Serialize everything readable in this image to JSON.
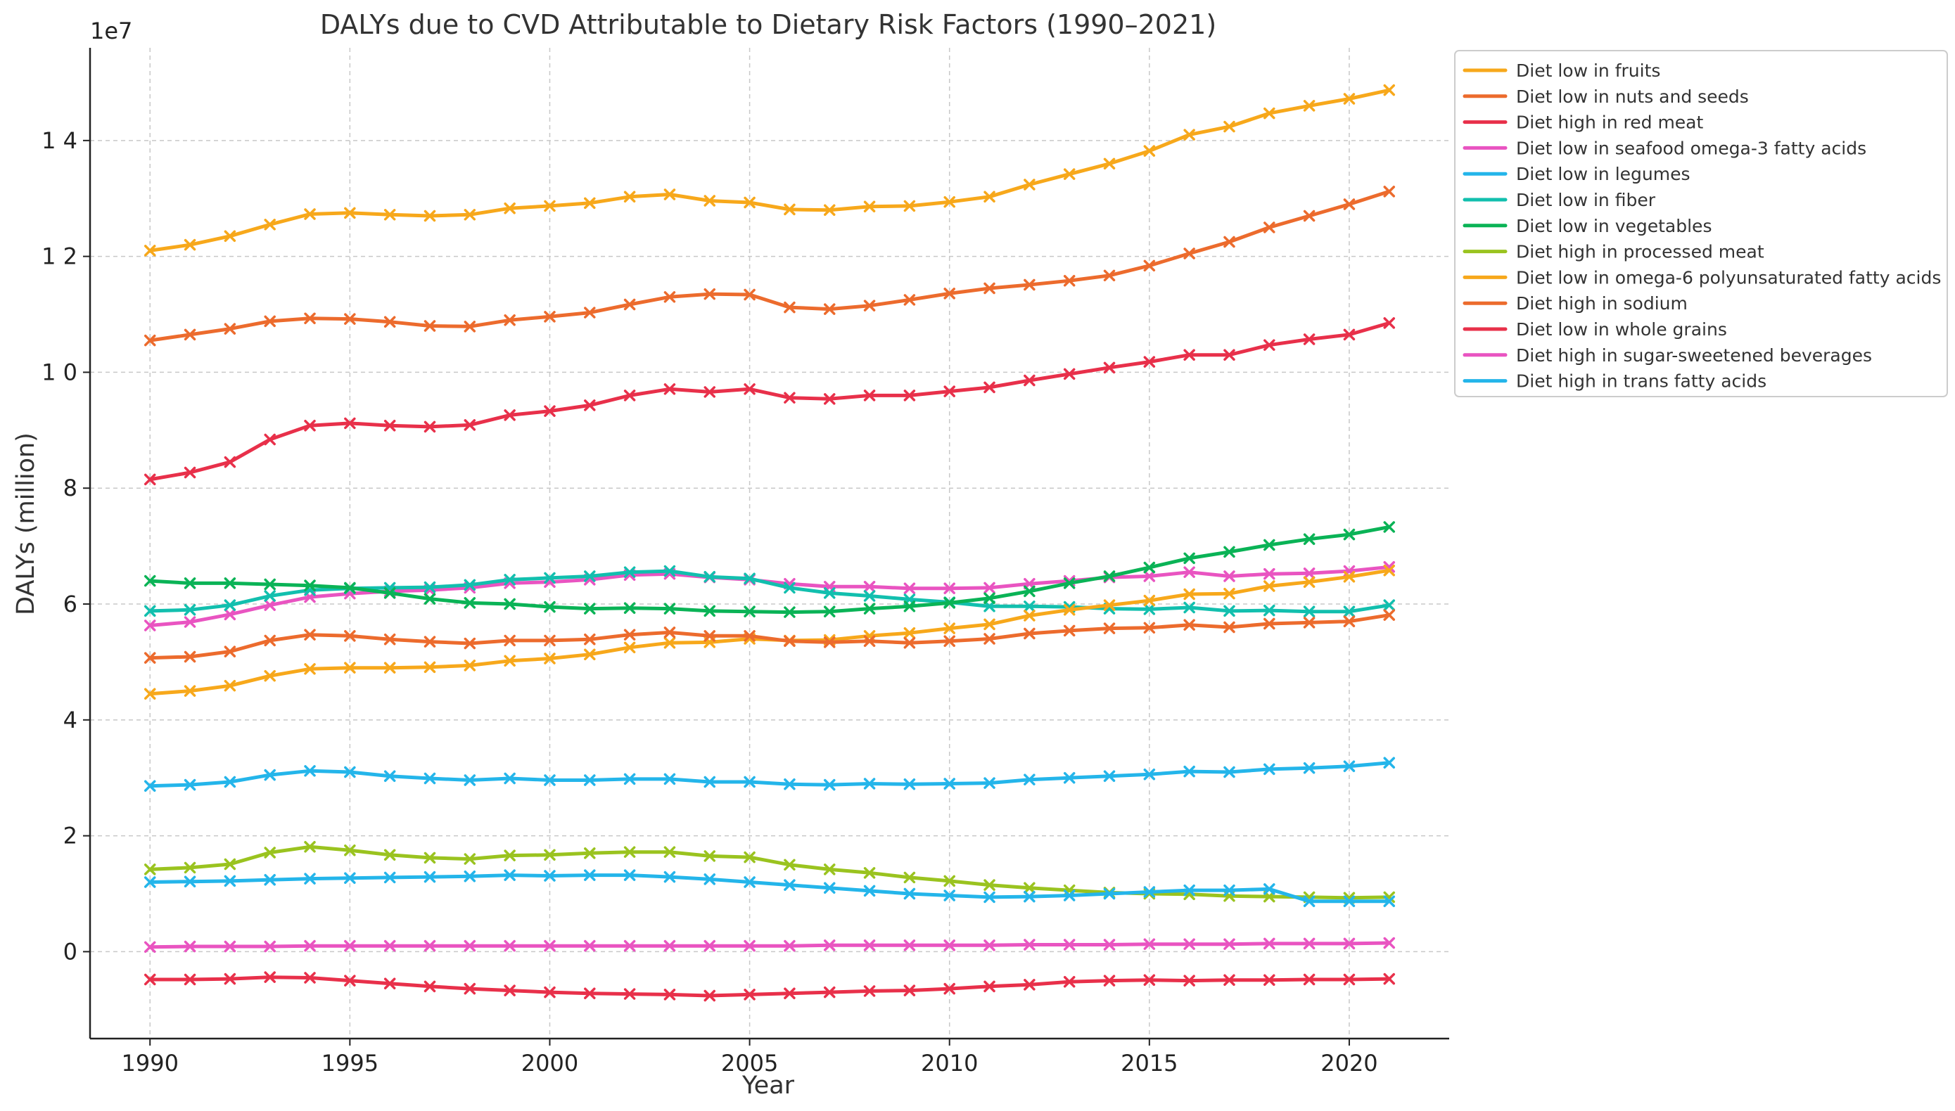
{
  "chart_data": {
    "type": "line",
    "title": "DALYs due to CVD Attributable to Dietary Risk Factors (1990–2021)",
    "xlabel": "Year",
    "ylabel": "DALYs (million)",
    "y_offset_label": "1e7",
    "xlim": [
      1988.5,
      2022.5
    ],
    "ylim": [
      -1.5,
      15.6
    ],
    "x_ticks": [
      1990,
      1995,
      2000,
      2005,
      2010,
      2015,
      2020
    ],
    "x_tick_labels": [
      "1990",
      "1995",
      "2000",
      "2005",
      "2010",
      "2015",
      "2020"
    ],
    "y_ticks": [
      0,
      2,
      4,
      6,
      8,
      10,
      12,
      14
    ],
    "y_tick_labels": [
      "0",
      "2",
      "4",
      "6",
      "8",
      "1 0",
      "1 2",
      "1 4"
    ],
    "grid": true,
    "legend_position": "top-right outside",
    "x": [
      1990,
      1991,
      1992,
      1993,
      1994,
      1995,
      1996,
      1997,
      1998,
      1999,
      2000,
      2001,
      2002,
      2003,
      2004,
      2005,
      2006,
      2007,
      2008,
      2009,
      2010,
      2011,
      2012,
      2013,
      2014,
      2015,
      2016,
      2017,
      2018,
      2019,
      2020,
      2021
    ],
    "series": [
      {
        "name": "Diet low in fruits",
        "color": "#f7a81b",
        "values": [
          12.1,
          12.2,
          12.35,
          12.55,
          12.73,
          12.75,
          12.72,
          12.7,
          12.72,
          12.83,
          12.87,
          12.92,
          13.03,
          13.07,
          12.96,
          12.93,
          12.81,
          12.8,
          12.86,
          12.87,
          12.94,
          13.03,
          13.24,
          13.42,
          13.6,
          13.82,
          14.1,
          14.24,
          14.47,
          14.6,
          14.72,
          14.87
        ]
      },
      {
        "name": "Diet low in nuts and seeds",
        "color": "#ec6b2d",
        "values": [
          10.55,
          10.65,
          10.75,
          10.88,
          10.93,
          10.92,
          10.87,
          10.8,
          10.79,
          10.9,
          10.96,
          11.03,
          11.17,
          11.3,
          11.35,
          11.34,
          11.12,
          11.09,
          11.15,
          11.25,
          11.36,
          11.45,
          11.51,
          11.58,
          11.67,
          11.84,
          12.05,
          12.25,
          12.5,
          12.7,
          12.9,
          13.12
        ]
      },
      {
        "name": "Diet high in red meat",
        "color": "#e8304a",
        "values": [
          8.15,
          8.27,
          8.45,
          8.84,
          9.08,
          9.12,
          9.08,
          9.06,
          9.09,
          9.26,
          9.33,
          9.43,
          9.6,
          9.71,
          9.66,
          9.71,
          9.56,
          9.54,
          9.6,
          9.6,
          9.67,
          9.74,
          9.86,
          9.97,
          10.08,
          10.18,
          10.3,
          10.3,
          10.47,
          10.57,
          10.65,
          10.85
        ]
      },
      {
        "name": "Diet low in seafood omega-3 fatty acids",
        "color": "#e954c1",
        "values": [
          5.63,
          5.69,
          5.82,
          5.98,
          6.12,
          6.18,
          6.22,
          6.24,
          6.28,
          6.36,
          6.38,
          6.42,
          6.5,
          6.52,
          6.46,
          6.42,
          6.35,
          6.3,
          6.3,
          6.27,
          6.27,
          6.28,
          6.35,
          6.4,
          6.46,
          6.48,
          6.55,
          6.48,
          6.52,
          6.53,
          6.57,
          6.64
        ]
      },
      {
        "name": "Diet low in legumes",
        "color": "#24b5ea",
        "values": [
          2.86,
          2.88,
          2.93,
          3.05,
          3.12,
          3.1,
          3.03,
          2.99,
          2.96,
          2.99,
          2.96,
          2.96,
          2.98,
          2.98,
          2.93,
          2.93,
          2.89,
          2.88,
          2.9,
          2.89,
          2.9,
          2.91,
          2.97,
          3.0,
          3.03,
          3.06,
          3.11,
          3.1,
          3.15,
          3.17,
          3.2,
          3.26
        ]
      },
      {
        "name": "Diet low in fiber",
        "color": "#12bfae",
        "values": [
          5.88,
          5.9,
          5.98,
          6.14,
          6.24,
          6.27,
          6.28,
          6.29,
          6.33,
          6.42,
          6.45,
          6.48,
          6.55,
          6.57,
          6.47,
          6.44,
          6.28,
          6.19,
          6.14,
          6.08,
          6.03,
          5.96,
          5.96,
          5.95,
          5.92,
          5.91,
          5.94,
          5.88,
          5.89,
          5.87,
          5.87,
          5.98
        ]
      },
      {
        "name": "Diet low in vegetables",
        "color": "#0ab356",
        "values": [
          6.4,
          6.36,
          6.36,
          6.34,
          6.32,
          6.28,
          6.19,
          6.09,
          6.02,
          6.0,
          5.95,
          5.92,
          5.93,
          5.92,
          5.88,
          5.87,
          5.86,
          5.87,
          5.92,
          5.96,
          6.02,
          6.1,
          6.22,
          6.36,
          6.48,
          6.63,
          6.79,
          6.9,
          7.02,
          7.12,
          7.2,
          7.33
        ]
      },
      {
        "name": "Diet high in processed meat",
        "color": "#9ac31f",
        "values": [
          1.42,
          1.45,
          1.51,
          1.71,
          1.81,
          1.75,
          1.67,
          1.62,
          1.6,
          1.66,
          1.67,
          1.7,
          1.72,
          1.72,
          1.65,
          1.63,
          1.5,
          1.42,
          1.36,
          1.28,
          1.22,
          1.15,
          1.1,
          1.06,
          1.02,
          1.0,
          0.99,
          0.96,
          0.95,
          0.94,
          0.93,
          0.94
        ]
      },
      {
        "name": "Diet low in omega-6 polyunsaturated fatty acids",
        "color": "#f7a81b",
        "values": [
          4.45,
          4.5,
          4.59,
          4.76,
          4.88,
          4.9,
          4.9,
          4.91,
          4.94,
          5.02,
          5.06,
          5.13,
          5.25,
          5.33,
          5.34,
          5.4,
          5.37,
          5.38,
          5.45,
          5.5,
          5.58,
          5.65,
          5.8,
          5.9,
          5.98,
          6.06,
          6.17,
          6.18,
          6.31,
          6.38,
          6.47,
          6.58
        ]
      },
      {
        "name": "Diet high in sodium",
        "color": "#ec6b2d",
        "values": [
          5.07,
          5.09,
          5.18,
          5.37,
          5.47,
          5.45,
          5.39,
          5.35,
          5.32,
          5.37,
          5.37,
          5.39,
          5.47,
          5.51,
          5.45,
          5.45,
          5.36,
          5.34,
          5.36,
          5.33,
          5.36,
          5.4,
          5.49,
          5.54,
          5.58,
          5.59,
          5.64,
          5.6,
          5.66,
          5.68,
          5.7,
          5.81
        ]
      },
      {
        "name": "Diet low in whole grains",
        "color": "#e8304a",
        "values": [
          -0.48,
          -0.48,
          -0.47,
          -0.44,
          -0.45,
          -0.5,
          -0.55,
          -0.6,
          -0.64,
          -0.67,
          -0.7,
          -0.72,
          -0.73,
          -0.74,
          -0.76,
          -0.74,
          -0.72,
          -0.7,
          -0.68,
          -0.67,
          -0.64,
          -0.6,
          -0.57,
          -0.52,
          -0.5,
          -0.49,
          -0.5,
          -0.49,
          -0.49,
          -0.48,
          -0.48,
          -0.47
        ]
      },
      {
        "name": "Diet high in sugar-sweetened beverages",
        "color": "#e954c1",
        "values": [
          0.08,
          0.09,
          0.09,
          0.09,
          0.1,
          0.1,
          0.1,
          0.1,
          0.1,
          0.1,
          0.1,
          0.1,
          0.1,
          0.1,
          0.1,
          0.1,
          0.1,
          0.11,
          0.11,
          0.11,
          0.11,
          0.11,
          0.12,
          0.12,
          0.12,
          0.13,
          0.13,
          0.13,
          0.14,
          0.14,
          0.14,
          0.15
        ]
      },
      {
        "name": "Diet high in trans fatty acids",
        "color": "#24b5ea",
        "values": [
          1.2,
          1.21,
          1.22,
          1.24,
          1.26,
          1.27,
          1.28,
          1.29,
          1.3,
          1.32,
          1.31,
          1.32,
          1.32,
          1.29,
          1.25,
          1.2,
          1.15,
          1.1,
          1.05,
          1.0,
          0.97,
          0.94,
          0.95,
          0.97,
          1.0,
          1.03,
          1.06,
          1.06,
          1.08,
          0.87,
          0.87,
          0.87
        ]
      }
    ]
  }
}
